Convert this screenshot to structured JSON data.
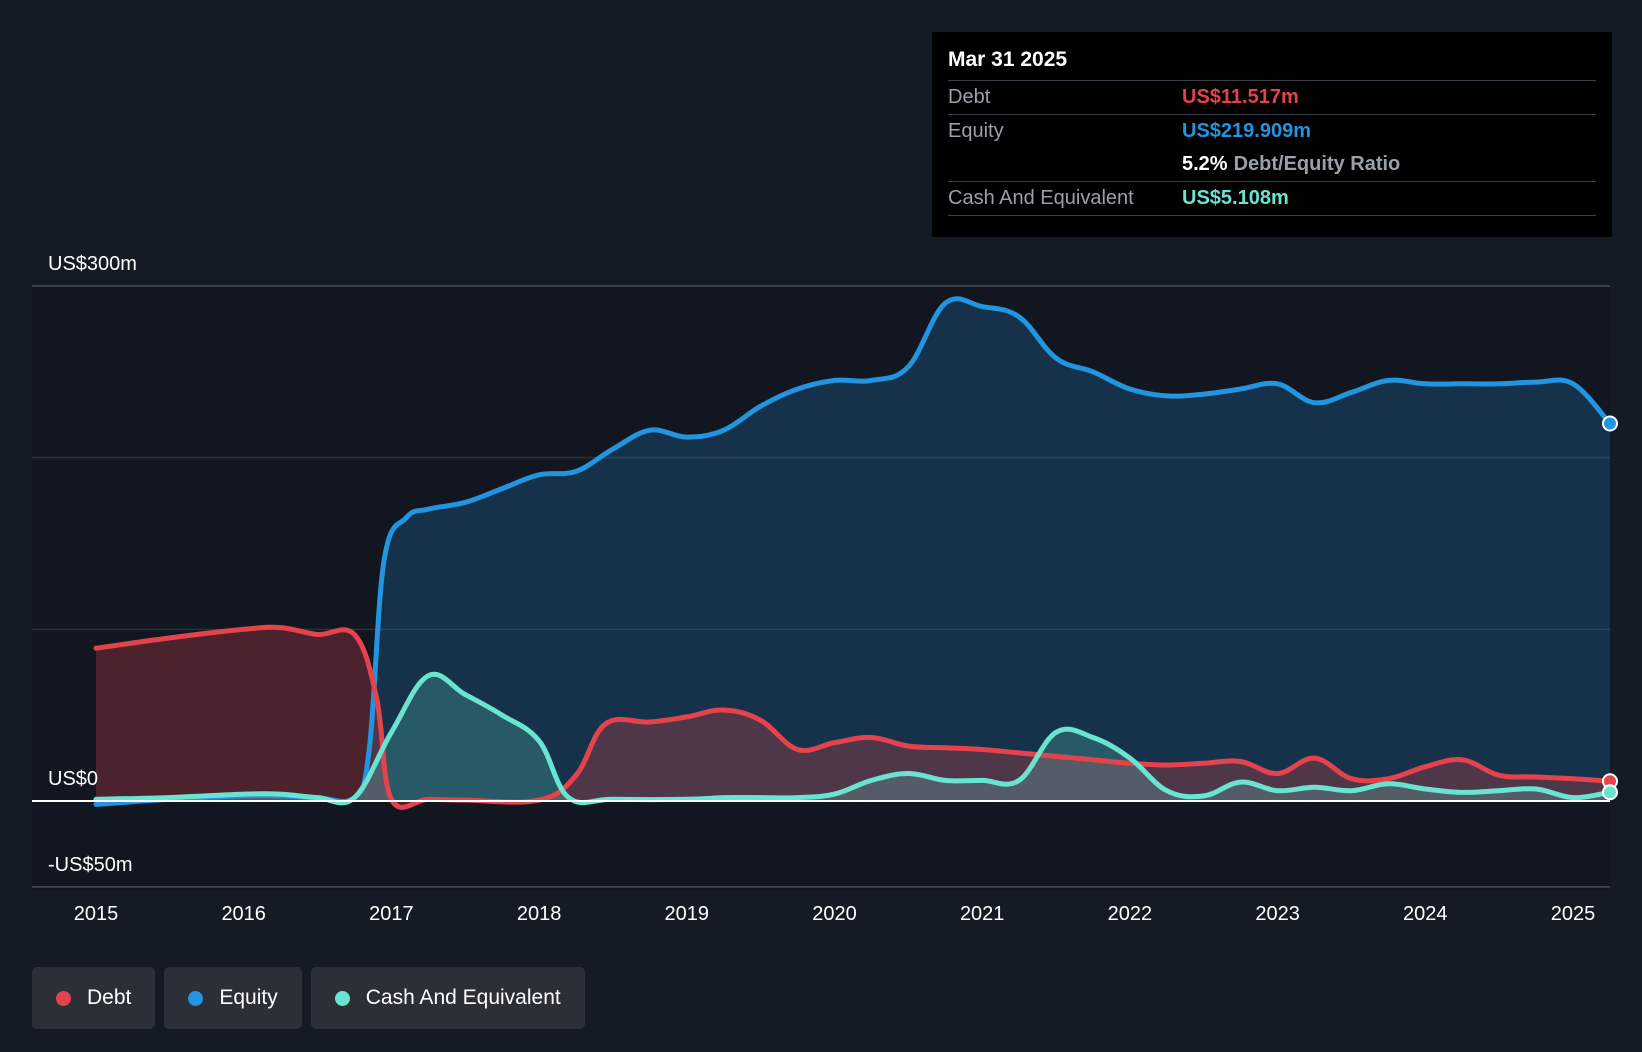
{
  "colors": {
    "debt": "#e5434c",
    "equity": "#2394df",
    "cash": "#6ae4d0",
    "background": "#151b24",
    "plot_background": "#111620"
  },
  "tooltip": {
    "date": "Mar 31 2025",
    "debt_label": "Debt",
    "debt_value": "US$11.517m",
    "equity_label": "Equity",
    "equity_value": "US$219.909m",
    "ratio_value": "5.2%",
    "ratio_label": "Debt/Equity Ratio",
    "cash_label": "Cash And Equivalent",
    "cash_value": "US$5.108m"
  },
  "legend": [
    {
      "label": "Debt",
      "color": "#e5434c"
    },
    {
      "label": "Equity",
      "color": "#2394df"
    },
    {
      "label": "Cash And Equivalent",
      "color": "#6ae4d0"
    }
  ],
  "chart_data": {
    "type": "area",
    "y_axis_labels": [
      "US$300m",
      "US$0",
      "-US$50m"
    ],
    "ylim": [
      -50,
      300
    ],
    "xlim": [
      2015.0,
      2025.25
    ],
    "x_ticks": [
      "2015",
      "2016",
      "2017",
      "2018",
      "2019",
      "2020",
      "2021",
      "2022",
      "2023",
      "2024",
      "2025"
    ],
    "grid": true,
    "legend_position": "bottom-left",
    "series": [
      {
        "name": "Debt",
        "x": [
          2015.0,
          2015.5,
          2016.0,
          2016.25,
          2016.5,
          2016.75,
          2016.9,
          2017.0,
          2017.25,
          2017.5,
          2018.0,
          2018.25,
          2018.45,
          2018.75,
          2019.0,
          2019.25,
          2019.5,
          2019.75,
          2020.0,
          2020.25,
          2020.5,
          2020.75,
          2021.0,
          2021.25,
          2021.5,
          2021.75,
          2022.0,
          2022.25,
          2022.5,
          2022.75,
          2023.0,
          2023.25,
          2023.5,
          2023.75,
          2024.0,
          2024.25,
          2024.5,
          2024.75,
          2025.0,
          2025.25
        ],
        "values": [
          89,
          95,
          100,
          101,
          97,
          97,
          60,
          1,
          1,
          0.5,
          0.5,
          15,
          45,
          46,
          49,
          53,
          47,
          30,
          34,
          37,
          32,
          31,
          30,
          28,
          26,
          24,
          22,
          21,
          22,
          23,
          16,
          25,
          13,
          13,
          20,
          24,
          15,
          14,
          13,
          11.517
        ]
      },
      {
        "name": "Equity",
        "x": [
          2015.0,
          2015.5,
          2016.0,
          2016.25,
          2016.5,
          2016.75,
          2016.85,
          2016.95,
          2017.1,
          2017.25,
          2017.5,
          2017.75,
          2018.0,
          2018.25,
          2018.5,
          2018.75,
          2019.0,
          2019.25,
          2019.5,
          2019.75,
          2020.0,
          2020.25,
          2020.5,
          2020.75,
          2021.0,
          2021.25,
          2021.5,
          2021.75,
          2022.0,
          2022.25,
          2022.5,
          2022.75,
          2023.0,
          2023.25,
          2023.5,
          2023.75,
          2024.0,
          2024.25,
          2024.5,
          2024.75,
          2025.0,
          2025.25
        ],
        "values": [
          -2,
          1,
          3,
          3,
          2,
          2,
          30,
          140,
          165,
          170,
          174,
          182,
          190,
          192,
          205,
          216,
          212,
          216,
          230,
          240,
          245,
          245,
          253,
          290,
          288,
          282,
          258,
          250,
          240,
          236,
          237,
          240,
          243,
          232,
          238,
          245,
          243,
          243,
          243,
          244,
          243,
          219.909
        ]
      },
      {
        "name": "Cash And Equivalent",
        "x": [
          2015.0,
          2015.5,
          2016.0,
          2016.25,
          2016.5,
          2016.75,
          2017.0,
          2017.25,
          2017.5,
          2017.75,
          2018.0,
          2018.2,
          2018.5,
          2019.0,
          2019.25,
          2019.5,
          2019.75,
          2020.0,
          2020.25,
          2020.5,
          2020.75,
          2021.0,
          2021.25,
          2021.5,
          2021.75,
          2022.0,
          2022.25,
          2022.5,
          2022.75,
          2023.0,
          2023.25,
          2023.5,
          2023.75,
          2024.0,
          2024.25,
          2024.5,
          2024.75,
          2025.0,
          2025.25
        ],
        "values": [
          1,
          2,
          4,
          4,
          2,
          2,
          40,
          73,
          62,
          50,
          35,
          2,
          1,
          1,
          2,
          2,
          2,
          4,
          12,
          16,
          12,
          12,
          12,
          40,
          37,
          25,
          6,
          3,
          11,
          6,
          8,
          6,
          10,
          7,
          5,
          6,
          7,
          2,
          5.108
        ]
      }
    ]
  }
}
